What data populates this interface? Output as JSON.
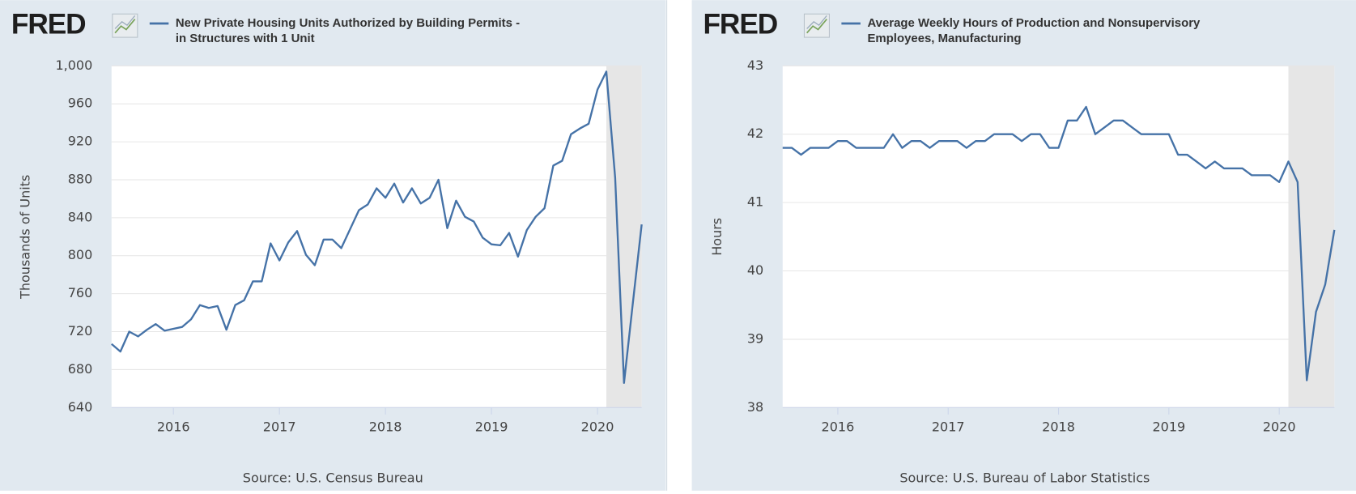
{
  "chart_data": [
    {
      "type": "line",
      "logo": "FRED",
      "axis_label": "Thousands of Units",
      "source": "Source: U.S. Census Bureau",
      "x": [
        "2015-06",
        "2015-07",
        "2015-08",
        "2015-09",
        "2015-10",
        "2015-11",
        "2015-12",
        "2016-01",
        "2016-02",
        "2016-03",
        "2016-04",
        "2016-05",
        "2016-06",
        "2016-07",
        "2016-08",
        "2016-09",
        "2016-10",
        "2016-11",
        "2016-12",
        "2017-01",
        "2017-02",
        "2017-03",
        "2017-04",
        "2017-05",
        "2017-06",
        "2017-07",
        "2017-08",
        "2017-09",
        "2017-10",
        "2017-11",
        "2017-12",
        "2018-01",
        "2018-02",
        "2018-03",
        "2018-04",
        "2018-05",
        "2018-06",
        "2018-07",
        "2018-08",
        "2018-09",
        "2018-10",
        "2018-11",
        "2018-12",
        "2019-01",
        "2019-02",
        "2019-03",
        "2019-04",
        "2019-05",
        "2019-06",
        "2019-07",
        "2019-08",
        "2019-09",
        "2019-10",
        "2019-11",
        "2019-12",
        "2020-01",
        "2020-02",
        "2020-03",
        "2020-04",
        "2020-05",
        "2020-06"
      ],
      "series": [
        {
          "name": "New Private Housing Units Authorized by Building Permits - in Structures with 1 Unit",
          "color": "#4572a7",
          "values": [
            707,
            699,
            720,
            715,
            722,
            728,
            721,
            723,
            725,
            733,
            748,
            745,
            747,
            722,
            748,
            753,
            773,
            773,
            813,
            795,
            814,
            826,
            801,
            790,
            817,
            817,
            808,
            828,
            848,
            854,
            871,
            861,
            876,
            856,
            871,
            855,
            861,
            880,
            829,
            858,
            841,
            836,
            819,
            812,
            811,
            824,
            799,
            827,
            841,
            850,
            895,
            900,
            928,
            934,
            939,
            975,
            994,
            882,
            666,
            750,
            833
          ]
        }
      ],
      "xlim": [
        "2015-06",
        "2020-06"
      ],
      "xticks": [
        {
          "value": "2016-01",
          "label": "2016"
        },
        {
          "value": "2017-01",
          "label": "2017"
        },
        {
          "value": "2018-01",
          "label": "2018"
        },
        {
          "value": "2019-01",
          "label": "2019"
        },
        {
          "value": "2020-01",
          "label": "2020"
        }
      ],
      "ylim": [
        640,
        1000
      ],
      "yticks": [
        640,
        680,
        720,
        760,
        800,
        840,
        880,
        920,
        960,
        {
          "value": 1000,
          "label": "1,000"
        }
      ],
      "recession_start": "2020-02",
      "grid": true
    },
    {
      "type": "line",
      "logo": "FRED",
      "axis_label": "Hours",
      "source": "Source: U.S. Bureau of Labor Statistics",
      "x": [
        "2015-07",
        "2015-08",
        "2015-09",
        "2015-10",
        "2015-11",
        "2015-12",
        "2016-01",
        "2016-02",
        "2016-03",
        "2016-04",
        "2016-05",
        "2016-06",
        "2016-07",
        "2016-08",
        "2016-09",
        "2016-10",
        "2016-11",
        "2016-12",
        "2017-01",
        "2017-02",
        "2017-03",
        "2017-04",
        "2017-05",
        "2017-06",
        "2017-07",
        "2017-08",
        "2017-09",
        "2017-10",
        "2017-11",
        "2017-12",
        "2018-01",
        "2018-02",
        "2018-03",
        "2018-04",
        "2018-05",
        "2018-06",
        "2018-07",
        "2018-08",
        "2018-09",
        "2018-10",
        "2018-11",
        "2018-12",
        "2019-01",
        "2019-02",
        "2019-03",
        "2019-04",
        "2019-05",
        "2019-06",
        "2019-07",
        "2019-08",
        "2019-09",
        "2019-10",
        "2019-11",
        "2019-12",
        "2020-01",
        "2020-02",
        "2020-03",
        "2020-04",
        "2020-05",
        "2020-06",
        "2020-07"
      ],
      "series": [
        {
          "name": "Average Weekly Hours of Production and Nonsupervisory Employees, Manufacturing",
          "color": "#4572a7",
          "values": [
            41.8,
            41.8,
            41.7,
            41.8,
            41.8,
            41.8,
            41.9,
            41.9,
            41.8,
            41.8,
            41.8,
            41.8,
            42.0,
            41.8,
            41.9,
            41.9,
            41.8,
            41.9,
            41.9,
            41.9,
            41.8,
            41.9,
            41.9,
            42.0,
            42.0,
            42.0,
            41.9,
            42.0,
            42.0,
            41.8,
            41.8,
            42.2,
            42.2,
            42.4,
            42.0,
            42.1,
            42.2,
            42.2,
            42.1,
            42.0,
            42.0,
            42.0,
            42.0,
            41.7,
            41.7,
            41.6,
            41.5,
            41.6,
            41.5,
            41.5,
            41.5,
            41.4,
            41.4,
            41.4,
            41.3,
            41.6,
            41.3,
            38.4,
            39.4,
            39.8,
            40.6
          ]
        }
      ],
      "xlim": [
        "2015-07",
        "2020-07"
      ],
      "xticks": [
        {
          "value": "2016-01",
          "label": "2016"
        },
        {
          "value": "2017-01",
          "label": "2017"
        },
        {
          "value": "2018-01",
          "label": "2018"
        },
        {
          "value": "2019-01",
          "label": "2019"
        },
        {
          "value": "2020-01",
          "label": "2020"
        }
      ],
      "ylim": [
        38,
        43
      ],
      "yticks": [
        38,
        39,
        40,
        41,
        42,
        43
      ],
      "recession_start": "2020-02",
      "grid": true
    }
  ]
}
